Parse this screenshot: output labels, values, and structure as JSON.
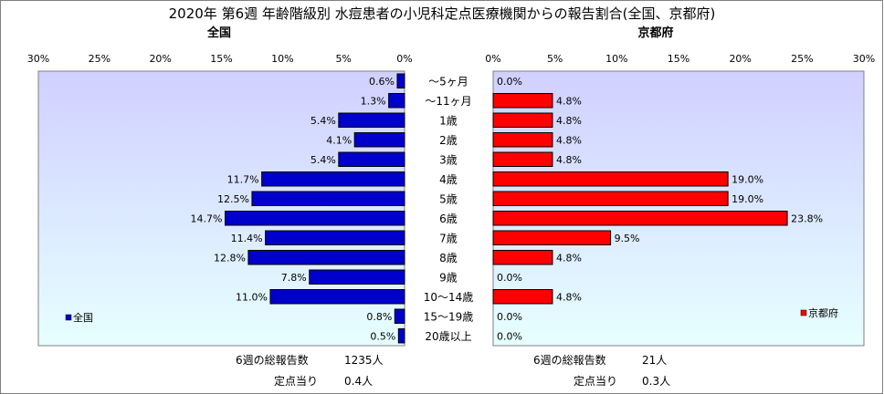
{
  "title": "2020年 第6週 年齢階級別 水痘患者の小児科定点医療機関からの報告割合(全国、京都府)",
  "chart_data": [
    {
      "type": "bar",
      "orientation": "horizontal",
      "direction": "reversed",
      "title": "全国",
      "categories": [
        "～5ヶ月",
        "～11ヶ月",
        "1歳",
        "2歳",
        "3歳",
        "4歳",
        "5歳",
        "6歳",
        "7歳",
        "8歳",
        "9歳",
        "10～14歳",
        "15～19歳",
        "20歳以上"
      ],
      "series": [
        {
          "name": "全国",
          "color": "#0000cc",
          "values": [
            0.6,
            1.3,
            5.4,
            4.1,
            5.4,
            11.7,
            12.5,
            14.7,
            11.4,
            12.8,
            7.8,
            11.0,
            0.8,
            0.5
          ],
          "labels": [
            "0.6%",
            "1.3%",
            "5.4%",
            "4.1%",
            "5.4%",
            "11.7%",
            "12.5%",
            "14.7%",
            "11.4%",
            "12.8%",
            "7.8%",
            "11.0%",
            "0.8%",
            "0.5%"
          ]
        }
      ],
      "xlim": [
        0,
        30
      ],
      "ticks": [
        "0%",
        "5%",
        "10%",
        "15%",
        "20%",
        "25%",
        "30%"
      ],
      "legend_position": "bottom-left",
      "plot_background": "gradient lavender-to-cyan",
      "grid": false
    },
    {
      "type": "bar",
      "orientation": "horizontal",
      "direction": "normal",
      "title": "京都府",
      "categories": [
        "～5ヶ月",
        "～11ヶ月",
        "1歳",
        "2歳",
        "3歳",
        "4歳",
        "5歳",
        "6歳",
        "7歳",
        "8歳",
        "9歳",
        "10～14歳",
        "15～19歳",
        "20歳以上"
      ],
      "series": [
        {
          "name": "京都府",
          "color": "#ff0000",
          "values": [
            0.0,
            4.8,
            4.8,
            4.8,
            4.8,
            19.0,
            19.0,
            23.8,
            9.5,
            4.8,
            0.0,
            4.8,
            0.0,
            0.0
          ],
          "labels": [
            "0.0%",
            "4.8%",
            "4.8%",
            "4.8%",
            "4.8%",
            "19.0%",
            "19.0%",
            "23.8%",
            "9.5%",
            "4.8%",
            "0.0%",
            "4.8%",
            "0.0%",
            "0.0%"
          ]
        }
      ],
      "xlim": [
        0,
        30
      ],
      "ticks": [
        "0%",
        "5%",
        "10%",
        "15%",
        "20%",
        "25%",
        "30%"
      ],
      "legend_position": "bottom-right",
      "plot_background": "gradient lavender-to-cyan",
      "grid": false
    }
  ],
  "footer": {
    "left": {
      "total_label": "6週の総報告数",
      "total_value": "1235人",
      "per_label": "定点当り",
      "per_value": "0.4人"
    },
    "right": {
      "total_label": "6週の総報告数",
      "total_value": "21人",
      "per_label": "定点当り",
      "per_value": "0.3人"
    }
  }
}
